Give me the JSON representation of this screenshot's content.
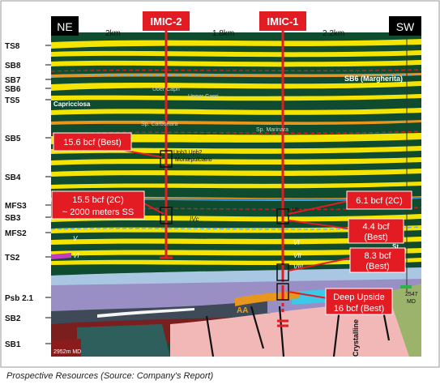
{
  "caption": "Prospective Resources (Source: Company's Report)",
  "directions": {
    "left": "NE",
    "right": "SW"
  },
  "distances": [
    "2km",
    "1.8km",
    "2.2km"
  ],
  "wells": [
    {
      "name": "IMIC-2"
    },
    {
      "name": "IMIC-1"
    }
  ],
  "horizons": [
    "TS8",
    "SB8",
    "SB7",
    "SB6",
    "TS5",
    "SB5",
    "SB4",
    "MFS3",
    "SB3",
    "MFS2",
    "TS2",
    "Psb 2.1",
    "SB2",
    "SB1"
  ],
  "inline_labels": {
    "sb6_margherita": "SB6 (Margherita)",
    "uber_capri": "Uber Capri",
    "upper_capri": "Upper Capri",
    "capricciosa": "Capricciosa",
    "sp_carbonara": "Sp. Carbonara",
    "sp_marinara": "Sp. Marinara",
    "upb3": "Upb3 Upb2",
    "montepulciano": "Montepulciano",
    "ivc": "IVc",
    "vb": "Vb",
    "v": "V",
    "vi_left": "VI",
    "vi_right": "VI",
    "vii": "VII",
    "viii": "VIII",
    "st": "St.",
    "aa": "AA",
    "crystalline": "Crystalline",
    "md_left": "2952m MD",
    "md_right_1": "2547",
    "md_right_2": "MD"
  },
  "callouts": [
    {
      "lines": [
        "15.6 bcf (Best)"
      ]
    },
    {
      "lines": [
        "15.5 bcf (2C)",
        "~ 2000 meters SS"
      ]
    },
    {
      "lines": [
        "6.1 bcf  (2C)"
      ]
    },
    {
      "lines": [
        "4.4 bcf",
        "(Best)"
      ]
    },
    {
      "lines": [
        "8.3 bcf",
        "(Best)"
      ]
    },
    {
      "lines": [
        "Deep Upside",
        "16 bcf (Best)"
      ]
    }
  ],
  "colors": {
    "callout_red": "#e31b23",
    "shale_green": "#0e4b2f",
    "sand_yellow": "#f4e400",
    "basement_pink": "#f2b8b8",
    "purple_unit": "#9a8fc4"
  }
}
